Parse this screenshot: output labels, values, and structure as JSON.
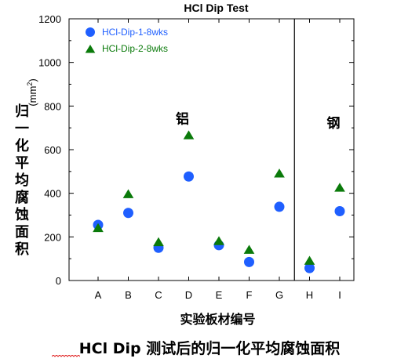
{
  "chart_data": {
    "type": "scatter",
    "title": "HCl Dip Test",
    "ylabel_chars": [
      "归",
      "一",
      "化",
      "平",
      "均",
      "腐",
      "蚀",
      "面",
      "积"
    ],
    "ylabel_unit_prefix": "(mm",
    "ylabel_unit_sup": "2",
    "ylabel_unit_suffix": ")",
    "xlabel": "实验板材编号",
    "categories": [
      "A",
      "B",
      "C",
      "D",
      "E",
      "F",
      "G",
      "H",
      "I"
    ],
    "ylim": [
      0,
      1200
    ],
    "yticks": [
      0,
      200,
      400,
      600,
      800,
      1000,
      1200
    ],
    "series": [
      {
        "name": "HCl-Dip-1-8wks",
        "marker": "circle",
        "color": "#1f5fff",
        "values": [
          255,
          310,
          150,
          477,
          162,
          85,
          338,
          57,
          318
        ]
      },
      {
        "name": "HCl-Dip-2-8wks",
        "marker": "triangle",
        "color": "#0a7a0a",
        "values": [
          240,
          395,
          175,
          665,
          180,
          140,
          490,
          90,
          425
        ]
      }
    ],
    "group_separator_after": "G",
    "annotations": [
      {
        "text": "铝",
        "x": "D",
        "y": 750
      },
      {
        "text": "钢",
        "x": "I",
        "y": 730
      }
    ],
    "legend_position": "top-left",
    "grid": false
  },
  "caption": {
    "prefix": "HCl Dip",
    "rest": " 测试后的归一化平均腐蚀面积"
  }
}
